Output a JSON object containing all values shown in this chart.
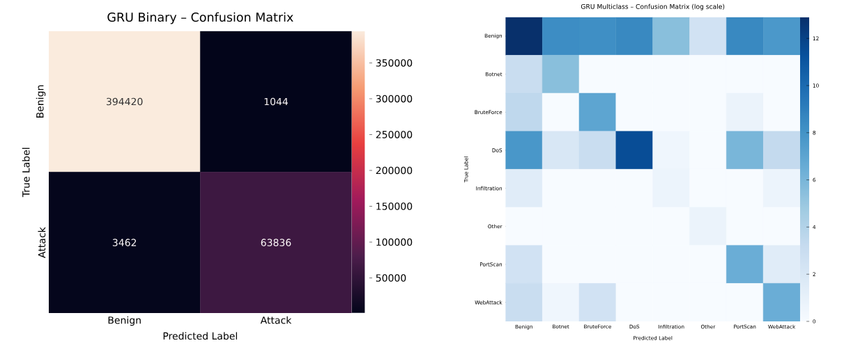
{
  "chart_data": [
    {
      "type": "heatmap",
      "title": "GRU Binary – Confusion Matrix",
      "xlabel": "Predicted Label",
      "ylabel": "True Label",
      "categories": [
        "Benign",
        "Attack"
      ],
      "y_categories": [
        "Benign",
        "Attack"
      ],
      "cells": [
        [
          394420,
          1044
        ],
        [
          3462,
          63836
        ]
      ],
      "data_labels": true,
      "clim": [
        1044,
        394420
      ],
      "cticks": [
        50000,
        100000,
        150000,
        200000,
        250000,
        300000,
        350000
      ]
    },
    {
      "type": "heatmap",
      "title": "GRU Multiclass – Confusion Matrix (log scale)",
      "xlabel": "Predicted Label",
      "ylabel": "True Label",
      "categories": [
        "Benign",
        "Botnet",
        "BruteForce",
        "DoS",
        "Infiltration",
        "Other",
        "PortScan",
        "WebAttack"
      ],
      "y_categories": [
        "Benign",
        "Botnet",
        "BruteForce",
        "DoS",
        "Infiltration",
        "Other",
        "PortScan",
        "WebAttack"
      ],
      "cells": [
        [
          12.9,
          8.3,
          8.2,
          8.5,
          5.5,
          2.5,
          8.5,
          7.7
        ],
        [
          3,
          5.5,
          0,
          0,
          0,
          0,
          0,
          0
        ],
        [
          3.5,
          0,
          7,
          0,
          0,
          0,
          0.8,
          0
        ],
        [
          7.8,
          2,
          3,
          11.5,
          0.5,
          0,
          6,
          3.3
        ],
        [
          1.5,
          0,
          0,
          0,
          0.7,
          0,
          0,
          0.7
        ],
        [
          0,
          0,
          0,
          0,
          0,
          0.8,
          0,
          0
        ],
        [
          2.5,
          0,
          0,
          0,
          0,
          0,
          6.5,
          1.5
        ],
        [
          3,
          0.5,
          2.5,
          0,
          0,
          0,
          0,
          6.5
        ]
      ],
      "clim": [
        0,
        12.9
      ],
      "cticks": [
        0,
        2,
        4,
        6,
        8,
        10,
        12
      ]
    }
  ]
}
